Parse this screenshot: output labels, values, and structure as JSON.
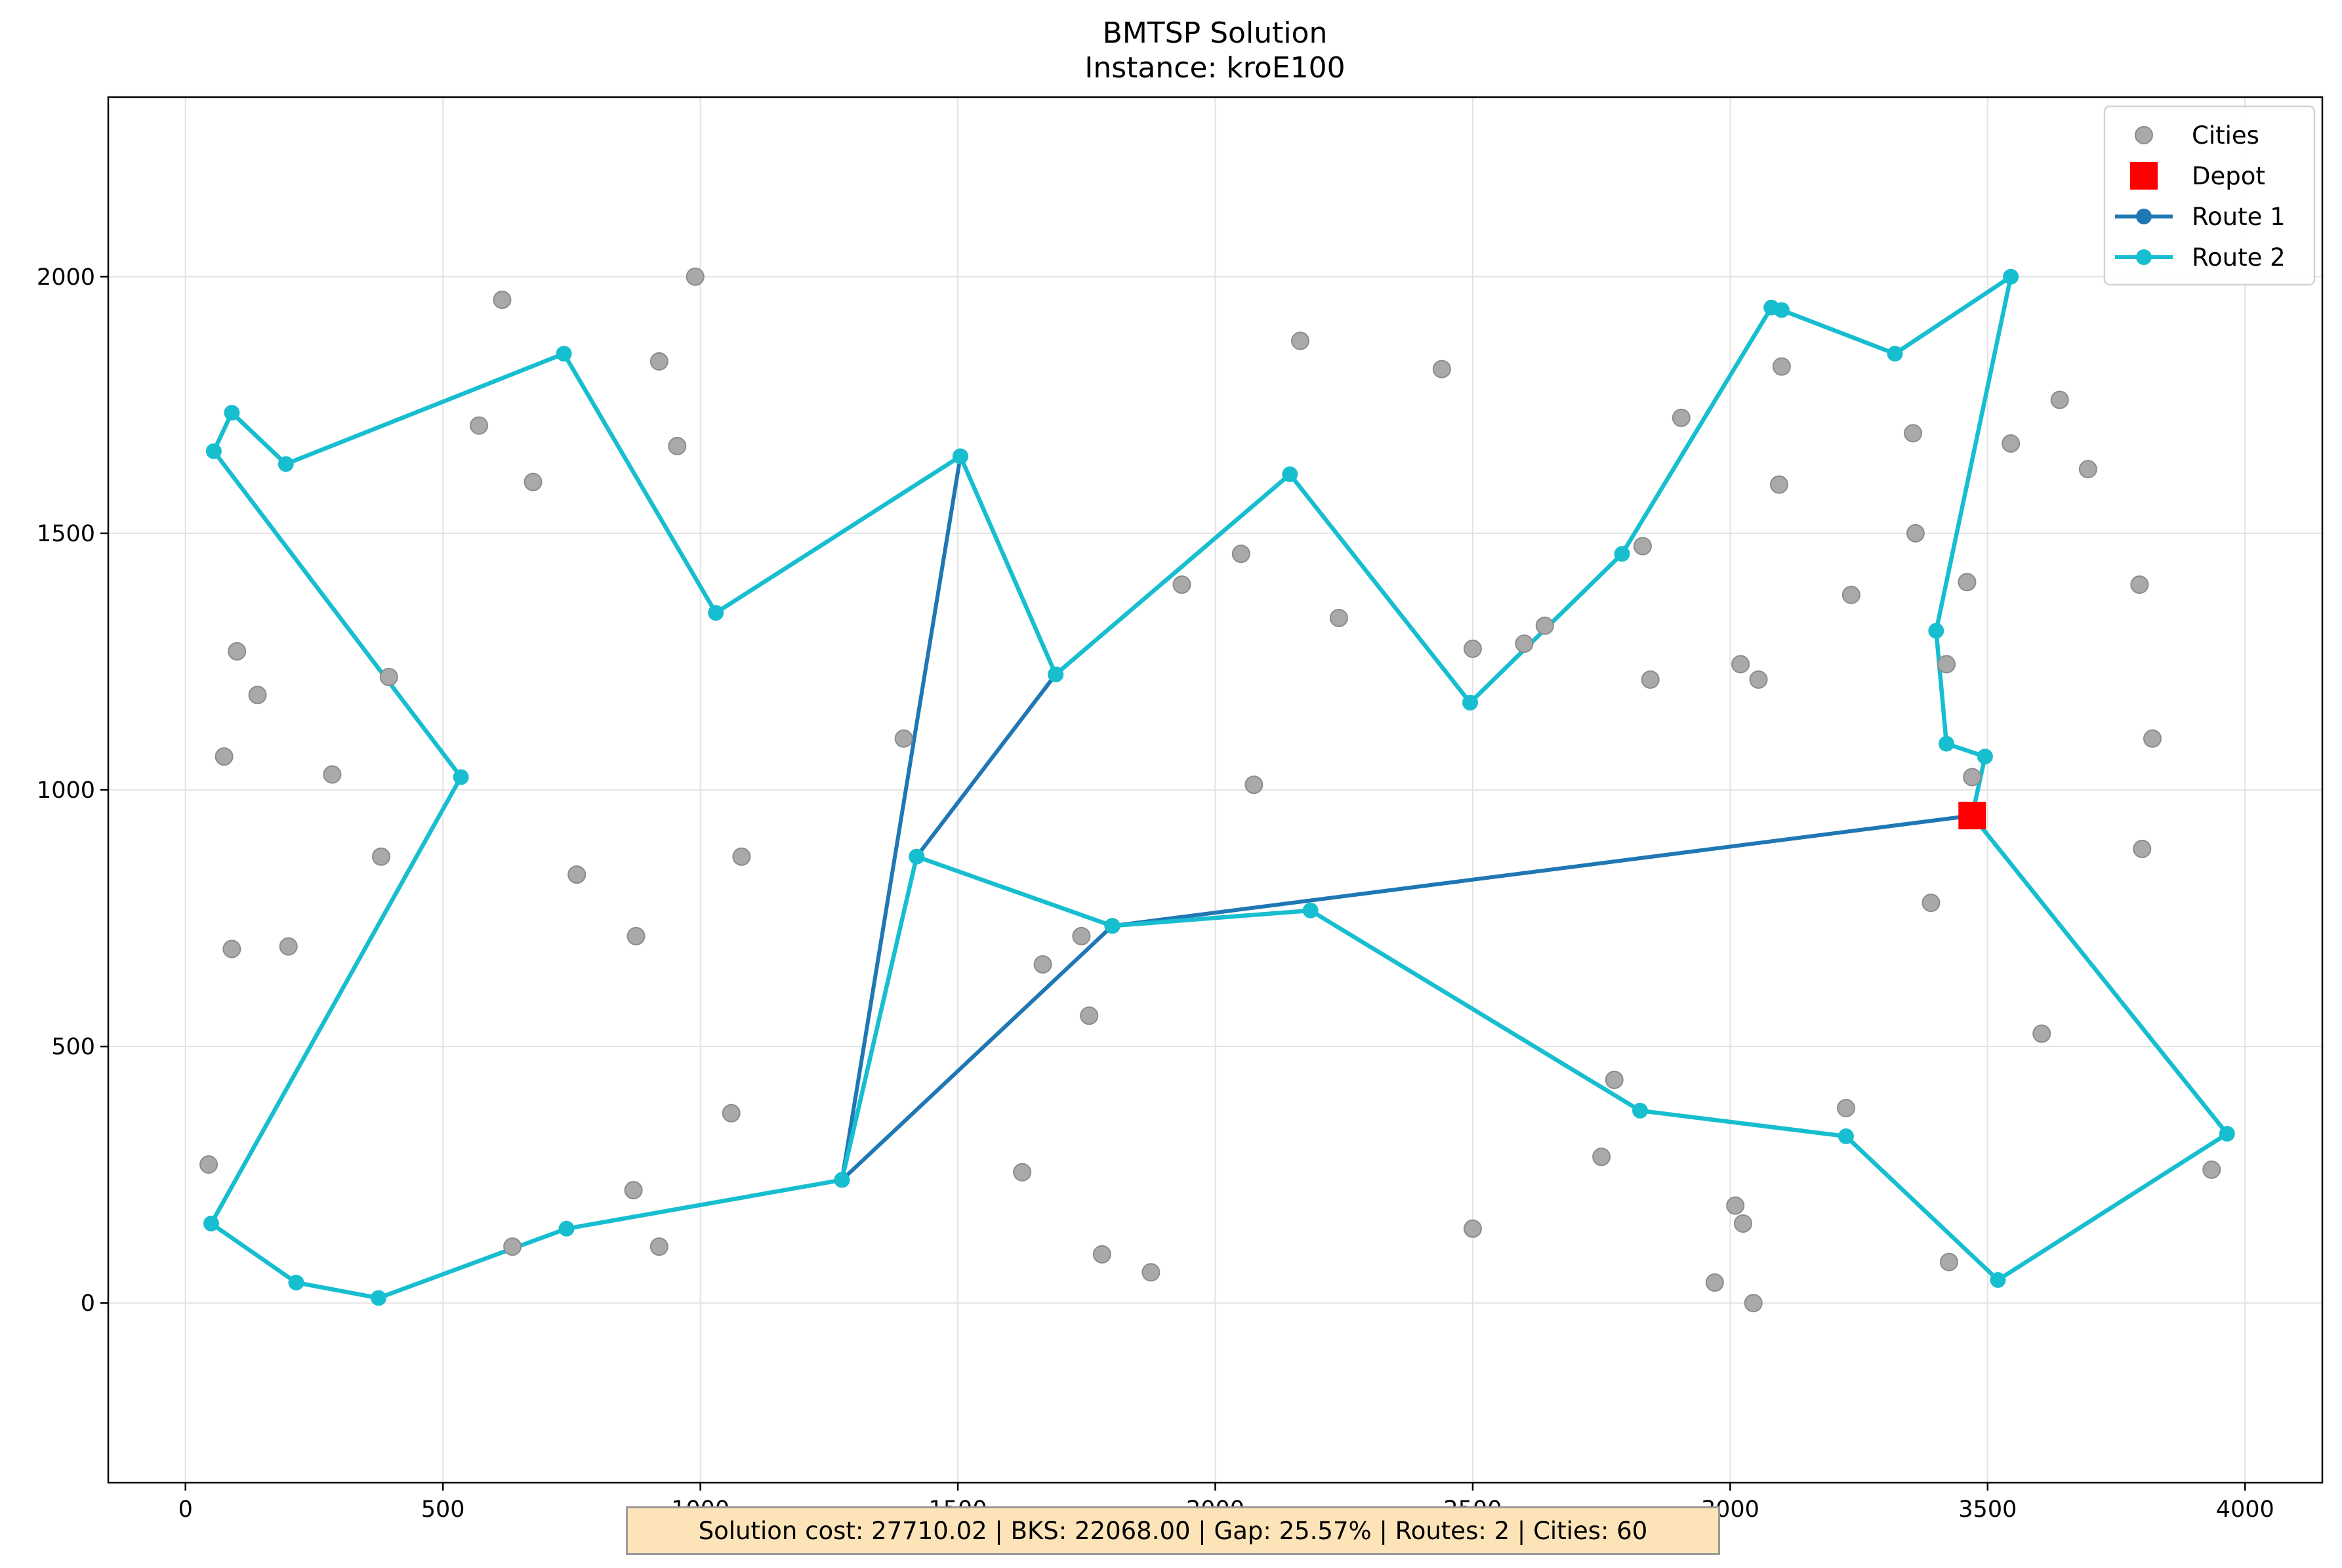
{
  "chart_data": {
    "type": "scatter",
    "title": "BMTSP Solution",
    "subtitle": "Instance: kroE100",
    "xlabel": "",
    "ylabel": "",
    "xlim": [
      -150,
      4150
    ],
    "ylim": [
      -350,
      2350
    ],
    "xticks": [
      0,
      500,
      1000,
      1500,
      2000,
      2500,
      3000,
      3500,
      4000
    ],
    "yticks": [
      0,
      500,
      1000,
      1500,
      2000
    ],
    "grid": true,
    "legend_position": "top-right",
    "legend": [
      "Cities",
      "Depot",
      "Route 1",
      "Route 2"
    ],
    "colors": {
      "cities": "#a9a9a9",
      "depot": "#ff0000",
      "route1": "#1f77b4",
      "route2": "#17becf"
    },
    "depot": [
      3470,
      950
    ],
    "cities": [
      [
        615,
        1955
      ],
      [
        990,
        2000
      ],
      [
        920,
        1835
      ],
      [
        955,
        1670
      ],
      [
        570,
        1710
      ],
      [
        675,
        1600
      ],
      [
        100,
        1270
      ],
      [
        140,
        1185
      ],
      [
        395,
        1220
      ],
      [
        75,
        1065
      ],
      [
        285,
        1030
      ],
      [
        380,
        870
      ],
      [
        90,
        690
      ],
      [
        200,
        695
      ],
      [
        45,
        270
      ],
      [
        760,
        835
      ],
      [
        875,
        715
      ],
      [
        1080,
        870
      ],
      [
        1060,
        370
      ],
      [
        870,
        220
      ],
      [
        920,
        110
      ],
      [
        635,
        110
      ],
      [
        1395,
        1100
      ],
      [
        1625,
        255
      ],
      [
        1665,
        660
      ],
      [
        1740,
        715
      ],
      [
        1755,
        560
      ],
      [
        1780,
        95
      ],
      [
        1875,
        60
      ],
      [
        1935,
        1400
      ],
      [
        2050,
        1460
      ],
      [
        2075,
        1010
      ],
      [
        2165,
        1875
      ],
      [
        2240,
        1335
      ],
      [
        2440,
        1820
      ],
      [
        2500,
        1275
      ],
      [
        2600,
        1285
      ],
      [
        2640,
        1320
      ],
      [
        2500,
        145
      ],
      [
        2750,
        285
      ],
      [
        2775,
        435
      ],
      [
        2830,
        1475
      ],
      [
        2845,
        1215
      ],
      [
        2905,
        1725
      ],
      [
        2970,
        40
      ],
      [
        3010,
        190
      ],
      [
        3025,
        155
      ],
      [
        3020,
        1245
      ],
      [
        3045,
        0
      ],
      [
        3055,
        1215
      ],
      [
        3095,
        1595
      ],
      [
        3100,
        1825
      ],
      [
        3225,
        380
      ],
      [
        3235,
        1380
      ],
      [
        3355,
        1695
      ],
      [
        3360,
        1500
      ],
      [
        3390,
        780
      ],
      [
        3420,
        1245
      ],
      [
        3425,
        80
      ],
      [
        3460,
        1405
      ],
      [
        3470,
        1025
      ],
      [
        3545,
        1675
      ],
      [
        3605,
        525
      ],
      [
        3640,
        1760
      ],
      [
        3695,
        1625
      ],
      [
        3795,
        1400
      ],
      [
        3800,
        885
      ],
      [
        3820,
        1100
      ],
      [
        3935,
        260
      ]
    ],
    "series": [
      {
        "name": "Route 1",
        "points": [
          [
            3470,
            950
          ],
          [
            1800,
            735
          ],
          [
            1420,
            870
          ],
          [
            1690,
            1225
          ],
          [
            1505,
            1650
          ],
          [
            1275,
            240
          ],
          [
            1800,
            735
          ]
        ]
      },
      {
        "name": "Route 2",
        "points": [
          [
            3470,
            950
          ],
          [
            3495,
            1065
          ],
          [
            3420,
            1090
          ],
          [
            3400,
            1310
          ],
          [
            3545,
            2000
          ],
          [
            3320,
            1850
          ],
          [
            3100,
            1935
          ],
          [
            3080,
            1940
          ],
          [
            2790,
            1460
          ],
          [
            2495,
            1170
          ],
          [
            2145,
            1615
          ],
          [
            1690,
            1225
          ],
          [
            1505,
            1650
          ],
          [
            1030,
            1345
          ],
          [
            735,
            1850
          ],
          [
            195,
            1635
          ],
          [
            90,
            1735
          ],
          [
            55,
            1660
          ],
          [
            535,
            1025
          ],
          [
            50,
            155
          ],
          [
            215,
            40
          ],
          [
            375,
            10
          ],
          [
            740,
            145
          ],
          [
            1275,
            240
          ],
          [
            1420,
            870
          ],
          [
            1800,
            735
          ],
          [
            2185,
            765
          ],
          [
            2825,
            375
          ],
          [
            3225,
            325
          ],
          [
            3520,
            45
          ],
          [
            3965,
            330
          ],
          [
            3470,
            950
          ]
        ]
      }
    ]
  },
  "info": {
    "summary": "Solution cost: 27710.02 | BKS: 22068.00 | Gap: 25.57% | Routes: 2 | Cities: 60"
  }
}
